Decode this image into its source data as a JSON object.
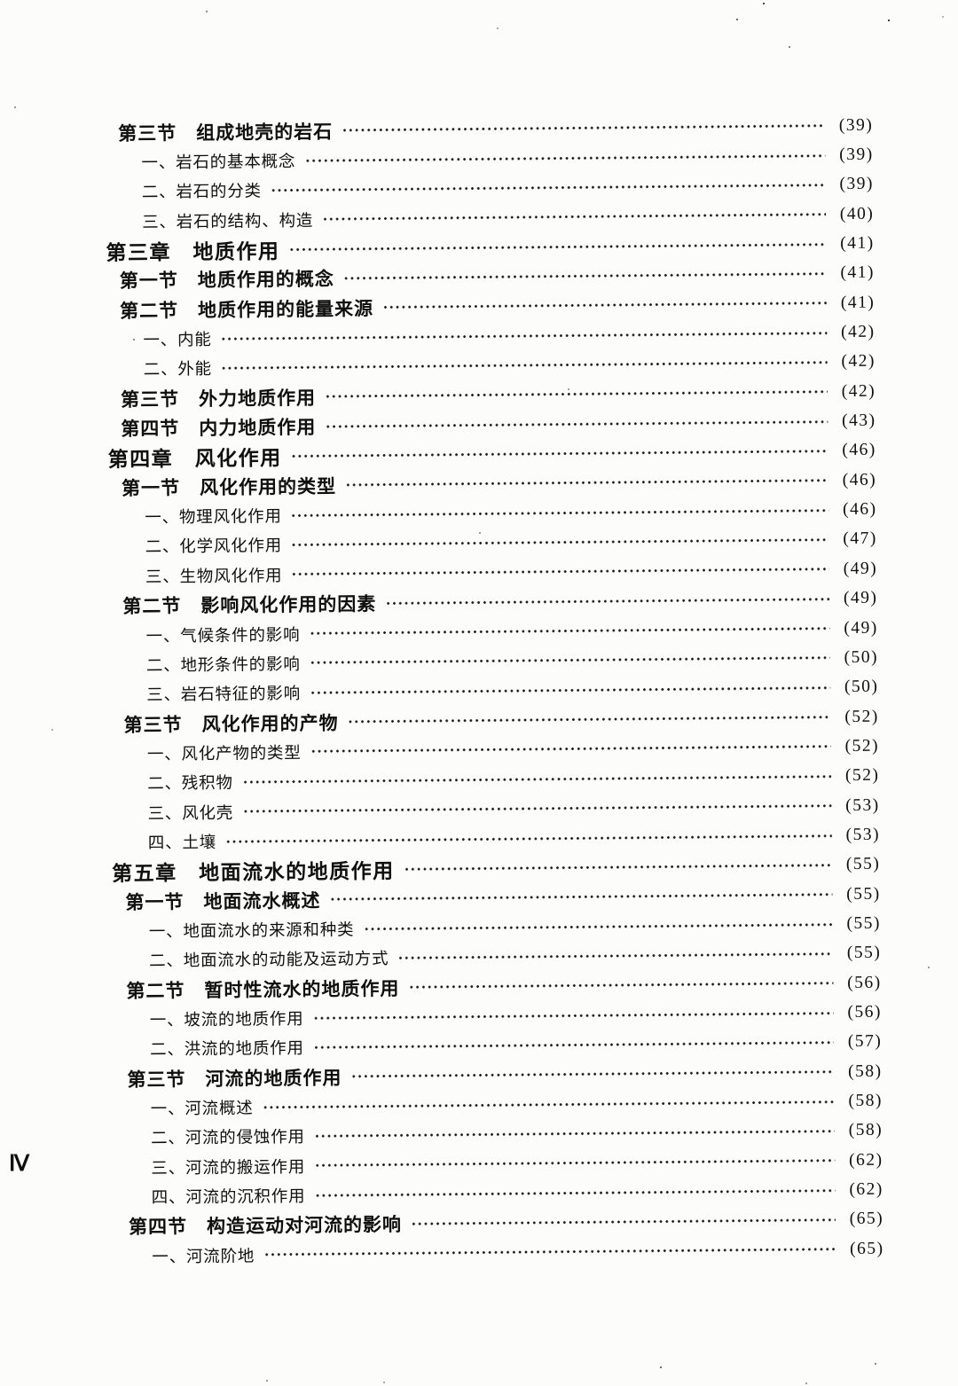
{
  "colors": {
    "paper": "#fcfcfa",
    "ink": "#101010"
  },
  "page": {
    "footer_page_number": "Ⅳ"
  },
  "toc": {
    "entries": [
      {
        "level": "section",
        "label": "第三节　组成地壳的岩石",
        "page": "(39)"
      },
      {
        "level": "sub",
        "label": "一、岩石的基本概念",
        "page": "(39)"
      },
      {
        "level": "sub",
        "label": "二、岩石的分类",
        "page": "(39)"
      },
      {
        "level": "sub",
        "label": "三、岩石的结构、构造",
        "page": "(40)"
      },
      {
        "level": "chapter",
        "label": "第三章　地质作用",
        "page": "(41)"
      },
      {
        "level": "section",
        "label": "第一节　地质作用的概念",
        "page": "(41)"
      },
      {
        "level": "section",
        "label": "第二节　地质作用的能量来源",
        "page": "(41)"
      },
      {
        "level": "sub",
        "label": "一、内能",
        "page": "(42)"
      },
      {
        "level": "sub",
        "label": "二、外能",
        "page": "(42)"
      },
      {
        "level": "section",
        "label": "第三节　外力地质作用",
        "page": "(42)"
      },
      {
        "level": "section",
        "label": "第四节　内力地质作用",
        "page": "(43)"
      },
      {
        "level": "chapter",
        "label": "第四章　风化作用",
        "page": "(46)"
      },
      {
        "level": "section",
        "label": "第一节　风化作用的类型",
        "page": "(46)"
      },
      {
        "level": "sub",
        "label": "一、物理风化作用",
        "page": "(46)"
      },
      {
        "level": "sub",
        "label": "二、化学风化作用",
        "page": "(47)"
      },
      {
        "level": "sub",
        "label": "三、生物风化作用",
        "page": "(49)"
      },
      {
        "level": "section",
        "label": "第二节　影响风化作用的因素",
        "page": "(49)"
      },
      {
        "level": "sub",
        "label": "一、气候条件的影响",
        "page": "(49)"
      },
      {
        "level": "sub",
        "label": "二、地形条件的影响",
        "page": "(50)"
      },
      {
        "level": "sub",
        "label": "三、岩石特征的影响",
        "page": "(50)"
      },
      {
        "level": "section",
        "label": "第三节　风化作用的产物",
        "page": "(52)"
      },
      {
        "level": "sub",
        "label": "一、风化产物的类型",
        "page": "(52)"
      },
      {
        "level": "sub",
        "label": "二、残积物",
        "page": "(52)"
      },
      {
        "level": "sub",
        "label": "三、风化壳",
        "page": "(53)"
      },
      {
        "level": "sub",
        "label": "四、土壤",
        "page": "(53)"
      },
      {
        "level": "chapter",
        "label": "第五章　地面流水的地质作用",
        "page": "(55)"
      },
      {
        "level": "section",
        "label": "第一节　地面流水概述",
        "page": "(55)"
      },
      {
        "level": "sub",
        "label": "一、地面流水的来源和种类",
        "page": "(55)"
      },
      {
        "level": "sub",
        "label": "二、地面流水的动能及运动方式",
        "page": "(55)"
      },
      {
        "level": "section",
        "label": "第二节　暂时性流水的地质作用",
        "page": "(56)"
      },
      {
        "level": "sub",
        "label": "一、坡流的地质作用",
        "page": "(56)"
      },
      {
        "level": "sub",
        "label": "二、洪流的地质作用",
        "page": "(57)"
      },
      {
        "level": "section",
        "label": "第三节　河流的地质作用",
        "page": "(58)"
      },
      {
        "level": "sub",
        "label": "一、河流概述",
        "page": "(58)"
      },
      {
        "level": "sub",
        "label": "二、河流的侵蚀作用",
        "page": "(58)"
      },
      {
        "level": "sub",
        "label": "三、河流的搬运作用",
        "page": "(62)"
      },
      {
        "level": "sub",
        "label": "四、河流的沉积作用",
        "page": "(62)"
      },
      {
        "level": "section",
        "label": "第四节　构造运动对河流的影响",
        "page": "(65)"
      },
      {
        "level": "sub",
        "label": "一、河流阶地",
        "page": "(65)"
      }
    ]
  }
}
